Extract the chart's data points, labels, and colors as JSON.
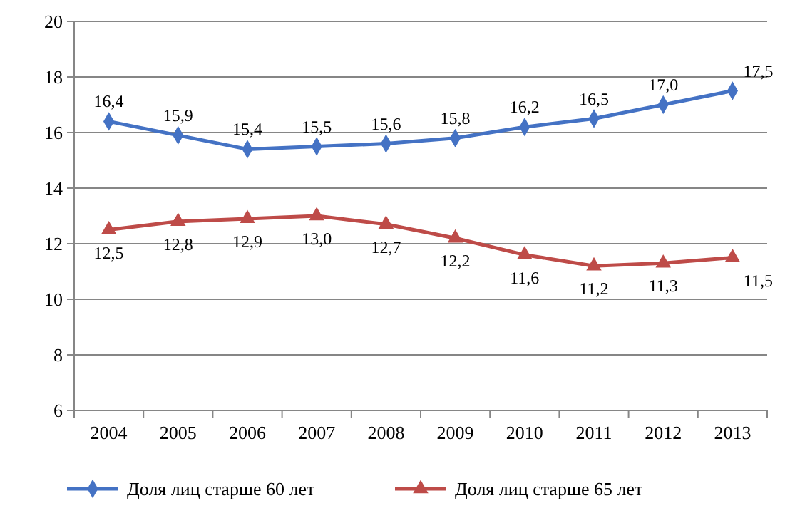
{
  "chart_data": {
    "type": "line",
    "categories": [
      "2004",
      "2005",
      "2006",
      "2007",
      "2008",
      "2009",
      "2010",
      "2011",
      "2012",
      "2013"
    ],
    "series": [
      {
        "name": "Доля лиц старше 60 лет",
        "color": "#4472c4",
        "marker": "diamond",
        "values": [
          16.4,
          15.9,
          15.4,
          15.5,
          15.6,
          15.8,
          16.2,
          16.5,
          17.0,
          17.5
        ],
        "value_labels": [
          "16,4",
          "15,9",
          "15,4",
          "15,5",
          "15,6",
          "15,8",
          "16,2",
          "16,5",
          "17,0",
          "17,5"
        ]
      },
      {
        "name": "Доля лиц старше 65 лет",
        "color": "#be4b48",
        "marker": "triangle",
        "values": [
          12.5,
          12.8,
          12.9,
          13.0,
          12.7,
          12.2,
          11.6,
          11.2,
          11.3,
          11.5
        ],
        "value_labels": [
          "12,5",
          "12,8",
          "12,9",
          "13,0",
          "12,7",
          "12,2",
          "11,6",
          "11,2",
          "11,3",
          "11,5"
        ]
      }
    ],
    "ylim": [
      6,
      20
    ],
    "yticks": [
      6,
      8,
      10,
      12,
      14,
      16,
      18,
      20
    ],
    "grid": "y",
    "legend": "bottom"
  }
}
